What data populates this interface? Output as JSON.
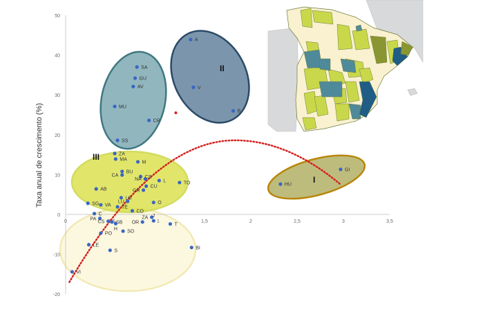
{
  "chart_data": {
    "type": "scatter",
    "title": "",
    "xlabel": "",
    "ylabel": "Taxa anual de crescimento (%)",
    "xlim": [
      0,
      3.5
    ],
    "ylim": [
      -20,
      50
    ],
    "x_ticks": [
      "0",
      "0,5",
      "1",
      "1,5",
      "2",
      "2,5",
      "3",
      "3,5"
    ],
    "y_ticks": [
      "50",
      "40",
      "30",
      "20",
      "10",
      "0",
      "-10",
      "-20"
    ],
    "grid": false,
    "point_color": "#3a66c4",
    "points": [
      {
        "label": "A",
        "x": 1.35,
        "y": 43.9
      },
      {
        "label": "SA",
        "x": 0.77,
        "y": 37.0
      },
      {
        "label": "GU",
        "x": 0.75,
        "y": 34.2
      },
      {
        "label": "AV",
        "x": 0.73,
        "y": 32.1
      },
      {
        "label": "MU",
        "x": 0.53,
        "y": 27.1
      },
      {
        "label": "CR",
        "x": 0.9,
        "y": 23.6
      },
      {
        "label": "SS",
        "x": 0.56,
        "y": 18.6
      },
      {
        "label": "V",
        "x": 1.38,
        "y": 31.9
      },
      {
        "label": "B",
        "x": 1.81,
        "y": 26.0
      },
      {
        "label": "ZA",
        "x": 0.53,
        "y": 15.3
      },
      {
        "label": "MA",
        "x": 0.54,
        "y": 13.9
      },
      {
        "label": "M",
        "x": 0.78,
        "y": 13.2
      },
      {
        "label": "BU",
        "x": 0.61,
        "y": 10.8
      },
      {
        "label": "CA",
        "x": 0.61,
        "y": 9.9
      },
      {
        "label": "CS",
        "x": 0.81,
        "y": 9.5
      },
      {
        "label": "NA",
        "x": 0.86,
        "y": 8.9
      },
      {
        "label": "L",
        "x": 1.01,
        "y": 8.5
      },
      {
        "label": "TO",
        "x": 1.23,
        "y": 8.0
      },
      {
        "label": "AB",
        "x": 0.33,
        "y": 6.4
      },
      {
        "label": "CU",
        "x": 0.87,
        "y": 7.1
      },
      {
        "label": "GR",
        "x": 0.84,
        "y": 6.1
      },
      {
        "label": "LO",
        "x": 0.6,
        "y": 4.2
      },
      {
        "label": "LU",
        "x": 0.67,
        "y": 3.3
      },
      {
        "label": "O",
        "x": 0.95,
        "y": 3.0
      },
      {
        "label": "SG",
        "x": 0.24,
        "y": 2.8
      },
      {
        "label": "VA",
        "x": 0.38,
        "y": 2.4
      },
      {
        "label": "TE",
        "x": 0.56,
        "y": 1.9
      },
      {
        "label": "CO",
        "x": 0.72,
        "y": 0.9
      },
      {
        "label": "C",
        "x": 0.31,
        "y": 0.2
      },
      {
        "label": "ZA",
        "x": 0.93,
        "y": -0.7
      },
      {
        "label": "J",
        "x": 0.95,
        "y": -1.6
      },
      {
        "label": "PA",
        "x": 0.37,
        "y": -1.0
      },
      {
        "label": "CS",
        "x": 0.46,
        "y": -1.7
      },
      {
        "label": "SB",
        "x": 0.5,
        "y": -1.9
      },
      {
        "label": "H",
        "x": 0.54,
        "y": -2.3
      },
      {
        "label": "OR",
        "x": 0.83,
        "y": -1.9
      },
      {
        "label": "T",
        "x": 1.13,
        "y": -2.4
      },
      {
        "label": "SO",
        "x": 0.62,
        "y": -4.2
      },
      {
        "label": "PO",
        "x": 0.38,
        "y": -4.7
      },
      {
        "label": "LE",
        "x": 0.25,
        "y": -7.6
      },
      {
        "label": "S",
        "x": 0.48,
        "y": -9.0
      },
      {
        "label": "BI",
        "x": 1.36,
        "y": -8.3
      },
      {
        "label": "VI",
        "x": 0.07,
        "y": -14.4
      },
      {
        "label": "GI",
        "x": 2.97,
        "y": 11.3
      },
      {
        "label": "HU",
        "x": 2.32,
        "y": 7.6
      }
    ],
    "extra_point": {
      "x": 1.19,
      "y": 25.5,
      "color": "#d42020"
    },
    "trend": {
      "style": "dotted",
      "color": "#d42020",
      "points": [
        [
          0.04,
          -17
        ],
        [
          1.83,
          18.6
        ],
        [
          2.97,
          7.5
        ]
      ]
    },
    "groups": [
      {
        "label": "I",
        "fill": "#a8a650",
        "stroke": "#b8860b",
        "members": [
          "GI",
          "HU"
        ]
      },
      {
        "label": "II",
        "fill": "#4f7390",
        "stroke": "#2b4a66",
        "members": [
          "A",
          "V",
          "B"
        ]
      },
      {
        "label": "III",
        "fill": "#d7de3a",
        "stroke": "#d2dc60",
        "members": [
          "ZA",
          "MA",
          "M",
          "BU",
          "CA",
          "CS",
          "NA",
          "L",
          "TO",
          "AB",
          "CU",
          "GR",
          "LO",
          "LU",
          "O",
          "SG",
          "VA",
          "TE",
          "CO"
        ]
      },
      {
        "label": "",
        "fill": "#6c9ea8",
        "stroke": "#3f7880",
        "members": [
          "SA",
          "GU",
          "AV",
          "MU",
          "CR",
          "SS"
        ]
      },
      {
        "label": "",
        "fill": "#fbf5d6",
        "stroke": "#f2e9b5",
        "members": [
          "C",
          "ZA",
          "J",
          "PA",
          "CS",
          "SB",
          "H",
          "OR",
          "T",
          "SO",
          "PO",
          "LE",
          "S",
          "BI",
          "VI"
        ]
      }
    ],
    "map_colors": {
      "low": "#f9f1cf",
      "mid": "#c9d84a",
      "teal": "#4f8a9a",
      "dark": "#1f5d86",
      "olive": "#8a9632",
      "background": "#d8d9db"
    }
  }
}
